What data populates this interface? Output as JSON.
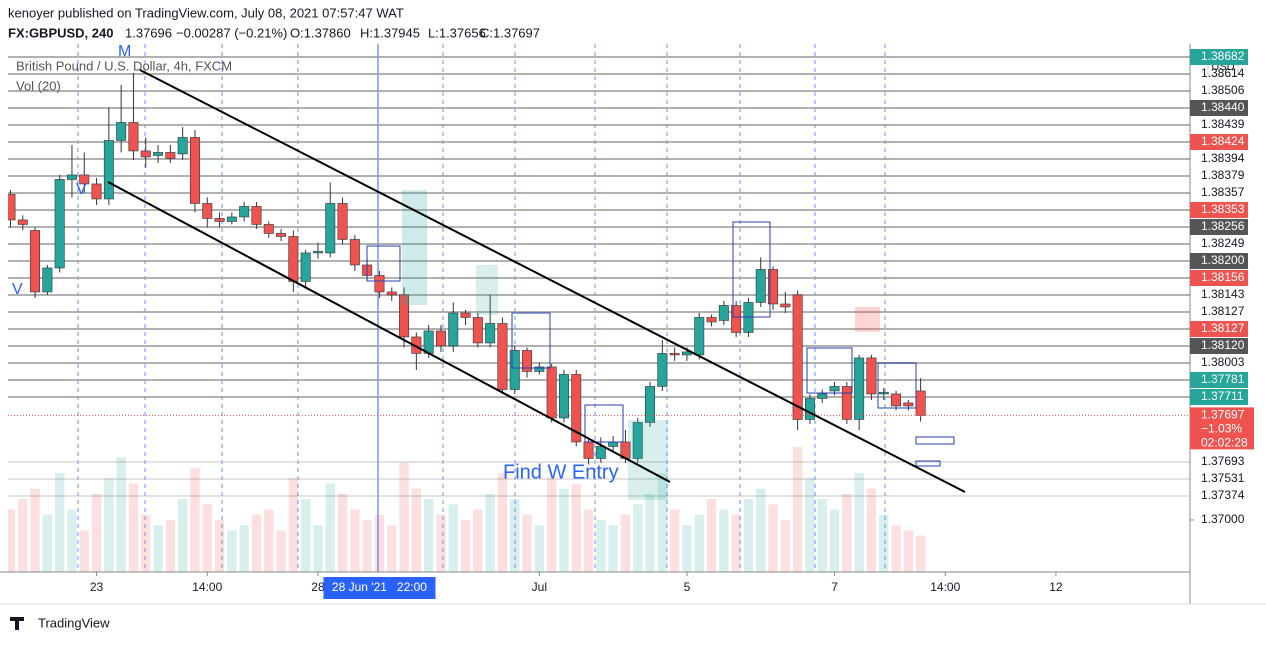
{
  "header": {
    "publisher": "kenoyer published on TradingView.com, July 08, 2021 07:57:47 WAT",
    "symbol": "FX:GBPUSD, 240",
    "last": "1.37696",
    "change": "−0.00287 (−0.21%)",
    "o": "O:1.37860",
    "h": "H:1.37945",
    "l": "L:1.37656",
    "c": "C:1.37697"
  },
  "footer": "TradingView",
  "chart_data": {
    "type": "candlestick",
    "title": "British Pound / U.S. Dollar, 4h, FXCM",
    "volume_label": "Vol (20)",
    "currency": "USD",
    "up_color": "#26a69a",
    "down_color": "#ef5350",
    "open": [
      1.3917,
      1.39,
      1.3893,
      1.3852,
      1.3868,
      1.3927,
      1.393,
      1.3924,
      1.3914,
      1.3953,
      1.3965,
      1.3946,
      1.3943,
      1.3945,
      1.3944,
      1.3955,
      1.3911,
      1.3901,
      1.3899,
      1.3902,
      1.3909,
      1.3897,
      1.3891,
      1.3889,
      1.3859,
      1.3878,
      1.3878,
      1.3911,
      1.3887,
      1.387,
      1.3863,
      1.3852,
      1.385,
      1.3822,
      1.3811,
      1.3826,
      1.3816,
      1.3838,
      1.3835,
      1.3818,
      1.3831,
      1.3787,
      1.3813,
      1.3799,
      1.3802,
      1.3768,
      1.3797,
      1.3752,
      1.3741,
      1.3749,
      1.3752,
      1.3741,
      1.3765,
      1.3789,
      1.3811,
      1.381,
      1.381,
      1.3835,
      1.3833,
      1.3843,
      1.3825,
      1.3845,
      1.3867,
      1.3844,
      1.385,
      1.3767,
      1.3781,
      1.3786,
      1.3789,
      1.3767,
      1.3808,
      1.3784,
      1.3784,
      1.3778,
      1.3786
    ],
    "high": [
      1.392,
      1.3903,
      1.3895,
      1.387,
      1.393,
      1.395,
      1.3945,
      1.3928,
      1.3975,
      1.399,
      1.3998,
      1.3955,
      1.395,
      1.395,
      1.3962,
      1.396,
      1.3915,
      1.3905,
      1.3905,
      1.3912,
      1.3912,
      1.3899,
      1.3894,
      1.3893,
      1.388,
      1.3885,
      1.3925,
      1.3915,
      1.389,
      1.3874,
      1.3866,
      1.3855,
      1.3855,
      1.3825,
      1.383,
      1.383,
      1.3845,
      1.384,
      1.3838,
      1.385,
      1.3835,
      1.3816,
      1.3815,
      1.3805,
      1.3804,
      1.38,
      1.38,
      1.3755,
      1.3755,
      1.3756,
      1.376,
      1.3768,
      1.3792,
      1.382,
      1.3815,
      1.3815,
      1.3838,
      1.3837,
      1.3846,
      1.3846,
      1.3848,
      1.3875,
      1.3869,
      1.3852,
      1.3853,
      1.3784,
      1.3787,
      1.3792,
      1.3792,
      1.381,
      1.381,
      1.3788,
      1.3786,
      1.378,
      1.37945
    ],
    "low": [
      1.3895,
      1.3893,
      1.3848,
      1.385,
      1.3865,
      1.3915,
      1.3918,
      1.391,
      1.391,
      1.3945,
      1.394,
      1.3935,
      1.3938,
      1.3938,
      1.394,
      1.3905,
      1.3895,
      1.3895,
      1.3897,
      1.3899,
      1.3894,
      1.3888,
      1.3886,
      1.3852,
      1.3855,
      1.3874,
      1.3875,
      1.3884,
      1.3866,
      1.386,
      1.3848,
      1.3846,
      1.3815,
      1.38,
      1.3808,
      1.3812,
      1.3812,
      1.383,
      1.3815,
      1.3815,
      1.3784,
      1.3784,
      1.3795,
      1.3797,
      1.3765,
      1.3765,
      1.3749,
      1.3737,
      1.3738,
      1.3746,
      1.3738,
      1.3738,
      1.3762,
      1.3786,
      1.3806,
      1.3806,
      1.3807,
      1.3829,
      1.383,
      1.3822,
      1.3822,
      1.3842,
      1.384,
      1.3838,
      1.376,
      1.3764,
      1.3778,
      1.3783,
      1.3764,
      1.376,
      1.378,
      1.378,
      1.3773,
      1.3773,
      1.37656
    ],
    "close": [
      1.39,
      1.3897,
      1.3852,
      1.3868,
      1.3927,
      1.393,
      1.3924,
      1.3914,
      1.3953,
      1.3965,
      1.3946,
      1.3942,
      1.3945,
      1.3941,
      1.3955,
      1.3911,
      1.3901,
      1.3899,
      1.3902,
      1.3909,
      1.3897,
      1.3891,
      1.3889,
      1.3859,
      1.3878,
      1.3879,
      1.3911,
      1.3887,
      1.387,
      1.3863,
      1.3852,
      1.385,
      1.3822,
      1.3811,
      1.3826,
      1.3816,
      1.3838,
      1.3835,
      1.3818,
      1.3831,
      1.3787,
      1.3813,
      1.3799,
      1.3802,
      1.3768,
      1.3797,
      1.3752,
      1.3741,
      1.3749,
      1.3752,
      1.3741,
      1.3765,
      1.3789,
      1.3811,
      1.381,
      1.3812,
      1.3835,
      1.3832,
      1.3843,
      1.3825,
      1.3845,
      1.3867,
      1.3844,
      1.3842,
      1.3767,
      1.3781,
      1.3784,
      1.3789,
      1.3767,
      1.3808,
      1.3784,
      1.3785,
      1.3776,
      1.3776,
      1.37697
    ],
    "volume": [
      60,
      70,
      80,
      55,
      95,
      60,
      40,
      75,
      90,
      110,
      85,
      55,
      45,
      50,
      70,
      100,
      65,
      50,
      40,
      45,
      55,
      60,
      40,
      90,
      70,
      45,
      85,
      75,
      60,
      50,
      55,
      45,
      105,
      80,
      70,
      55,
      65,
      50,
      60,
      75,
      95,
      70,
      55,
      45,
      90,
      80,
      85,
      60,
      50,
      45,
      55,
      65,
      75,
      95,
      60,
      45,
      55,
      70,
      60,
      55,
      70,
      80,
      65,
      50,
      120,
      90,
      70,
      60,
      75,
      95,
      80,
      55,
      45,
      40,
      35
    ],
    "xlim": [
      -0.2,
      95.9
    ],
    "ylim": [
      1.36653,
      1.40173
    ],
    "xticks": [
      {
        "value": 7,
        "label": "23"
      },
      {
        "value": 16,
        "label": "14:00"
      },
      {
        "value": 25,
        "label": "28"
      },
      {
        "value": 43,
        "label": "Jul"
      },
      {
        "value": 55,
        "label": "5"
      },
      {
        "value": 67,
        "label": "7"
      },
      {
        "value": 76,
        "label": "14:00"
      },
      {
        "value": 85,
        "label": "12"
      }
    ],
    "crosshair_label": {
      "value": 30,
      "label": "28 Jun '21   22:00"
    },
    "yticks": [
      {
        "value": 1.37,
        "label": "1.37000"
      }
    ],
    "price_lines": [
      {
        "label": "1.38682",
        "color": "#26a69a"
      },
      {
        "label": "1.38614",
        "color": "none"
      },
      {
        "label": "1.38506",
        "color": "none"
      },
      {
        "label": "1.38440",
        "color": "#555555"
      },
      {
        "label": "1.38439",
        "color": "none"
      },
      {
        "label": "1.38424",
        "color": "#ef5350"
      },
      {
        "label": "1.38394",
        "color": "none"
      },
      {
        "label": "1.38379",
        "color": "none"
      },
      {
        "label": "1.38357",
        "color": "none"
      },
      {
        "label": "1.38353",
        "color": "#ef5350"
      },
      {
        "label": "1.38256",
        "color": "#555555"
      },
      {
        "label": "1.38249",
        "color": "none"
      },
      {
        "label": "1.38200",
        "color": "#555555"
      },
      {
        "label": "1.38156",
        "color": "#ef5350"
      },
      {
        "label": "1.38143",
        "color": "none"
      },
      {
        "label": "1.38127",
        "color": "none"
      },
      {
        "label": "1.38127",
        "color": "#ef5350"
      },
      {
        "label": "1.38120",
        "color": "#555555"
      },
      {
        "label": "1.38003",
        "color": "none"
      },
      {
        "label": "1.37781",
        "color": "#26a69a"
      },
      {
        "label": "1.37711",
        "color": "#26a69a"
      }
    ],
    "current": {
      "value": 1.37697,
      "label": "1.37697",
      "pct": "−1.03%",
      "timer": "02:02:28"
    },
    "lower_lines": [
      "1.37693",
      "1.37531",
      "1.37374"
    ],
    "annotations": [
      "M",
      "V",
      "V",
      "Find W Entry"
    ]
  }
}
